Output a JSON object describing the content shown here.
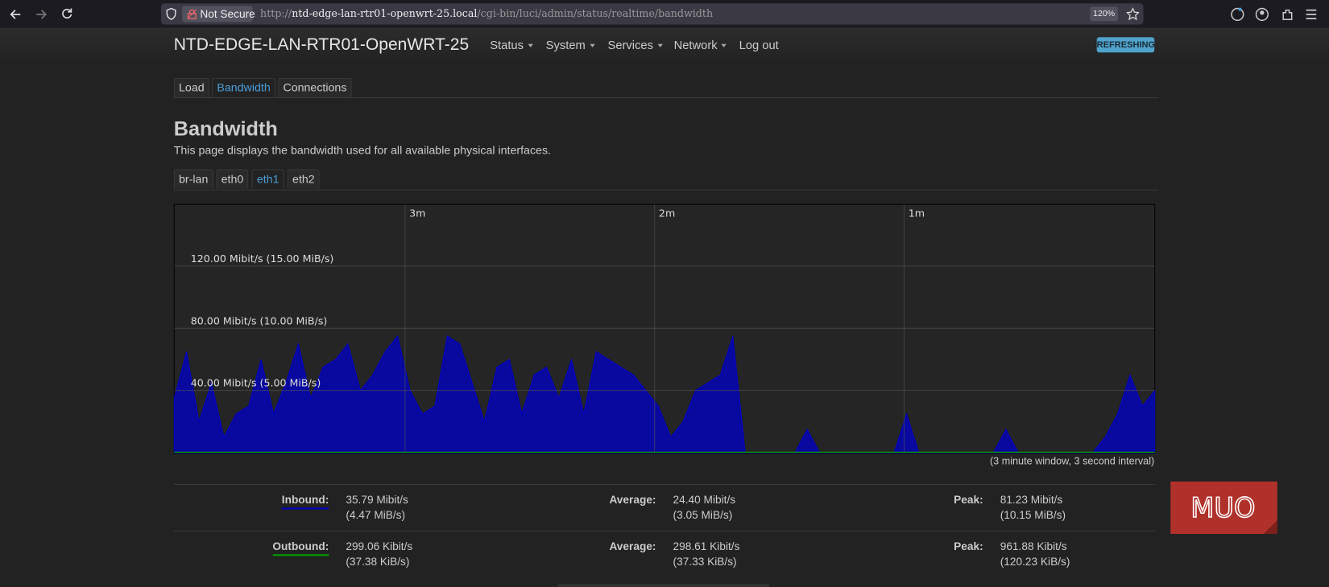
{
  "browser": {
    "security": "Not Secure",
    "url_scheme": "http://",
    "url_host": "ntd-edge-lan-rtr01-openwrt-25.local",
    "url_path": "/cgi-bin/luci/admin/status/realtime/bandwidth",
    "zoom": "120%"
  },
  "header": {
    "title": "NTD-EDGE-LAN-RTR01-OpenWRT-25",
    "menu": [
      "Status",
      "System",
      "Services",
      "Network"
    ],
    "logout": "Log out",
    "badge": "REFRESHING"
  },
  "tabs": [
    "Load",
    "Bandwidth",
    "Connections"
  ],
  "page": {
    "title": "Bandwidth",
    "description": "This page displays the bandwidth used for all available physical interfaces."
  },
  "interface_tabs": [
    "br-lan",
    "eth0",
    "eth1",
    "eth2"
  ],
  "chart": {
    "type": "area",
    "xlim": [
      0,
      79
    ],
    "xticks": [
      {
        "value": 18.6,
        "label": "3m"
      },
      {
        "value": 38.7,
        "label": "2m"
      },
      {
        "value": 58.8,
        "label": "1m"
      }
    ],
    "ylim": [
      0,
      160
    ],
    "yticks": [
      {
        "value": 40,
        "label": "40.00 Mibit/s (5.00 MiB/s)"
      },
      {
        "value": 80,
        "label": "80.00 Mibit/s (10.00 MiB/s)"
      },
      {
        "value": 120,
        "label": "120.00 Mibit/s (15.00 MiB/s)"
      }
    ],
    "grid": true,
    "series": [
      {
        "name": "Inbound",
        "color": "#0000c8",
        "values": [
          35,
          65,
          20,
          45,
          10,
          25,
          30,
          60,
          25,
          45,
          70,
          35,
          55,
          60,
          70,
          40,
          50,
          65,
          75,
          40,
          25,
          30,
          75,
          70,
          45,
          20,
          55,
          60,
          25,
          50,
          55,
          35,
          60,
          25,
          65,
          60,
          55,
          50,
          40,
          30,
          10,
          20,
          40,
          45,
          50,
          75,
          0,
          0,
          0,
          0,
          0,
          15,
          0,
          0,
          0,
          0,
          0,
          0,
          0,
          25,
          0,
          0,
          0,
          0,
          0,
          0,
          0,
          15,
          0,
          0,
          0,
          0,
          0,
          0,
          0,
          10,
          25,
          50,
          30,
          40
        ]
      },
      {
        "name": "Outbound",
        "color": "#00a000",
        "values": [
          0.3,
          0.3,
          0.3,
          0.3,
          0.3,
          0.3,
          0.3,
          0.3,
          0.3,
          0.3,
          0.3,
          0.3,
          0.3,
          0.3,
          0.3,
          0.3,
          0.3,
          0.3,
          0.3,
          0.3,
          0.3,
          0.3,
          0.3,
          0.3,
          0.3,
          0.3,
          0.3,
          0.3,
          0.3,
          0.3,
          0.3,
          0.3,
          0.3,
          0.3,
          0.3,
          0.3,
          0.3,
          0.3,
          0.3,
          0.3,
          0.3,
          0.3,
          0.3,
          0.3,
          0.3,
          0.3,
          0.3,
          0.3,
          0.3,
          0.3,
          0.3,
          0.3,
          0.3,
          0.3,
          0.3,
          0.3,
          0.3,
          0.3,
          0.3,
          0.3,
          0.3,
          0.3,
          0.3,
          0.3,
          0.3,
          0.3,
          0.3,
          0.3,
          0.3,
          0.3,
          0.3,
          0.3,
          0.3,
          0.3,
          0.3,
          0.3,
          0.3,
          0.3,
          0.3,
          0.3
        ]
      }
    ],
    "caption": "(3 minute window, 3 second interval)"
  },
  "stats": [
    {
      "label": "Inbound:",
      "current": [
        "35.79 Mibit/s",
        "(4.47 MiB/s)"
      ],
      "average_label": "Average:",
      "average": [
        "24.40 Mibit/s",
        "(3.05 MiB/s)"
      ],
      "peak_label": "Peak:",
      "peak": [
        "81.23 Mibit/s",
        "(10.15 MiB/s)"
      ]
    },
    {
      "label": "Outbound:",
      "current": [
        "299.06 Kibit/s",
        "(37.38 KiB/s)"
      ],
      "average_label": "Average:",
      "average": [
        "298.61 Kibit/s",
        "(37.33 KiB/s)"
      ],
      "peak_label": "Peak:",
      "peak": [
        "961.88 Kibit/s",
        "(120.23 KiB/s)"
      ]
    }
  ],
  "watermark": "MUO"
}
